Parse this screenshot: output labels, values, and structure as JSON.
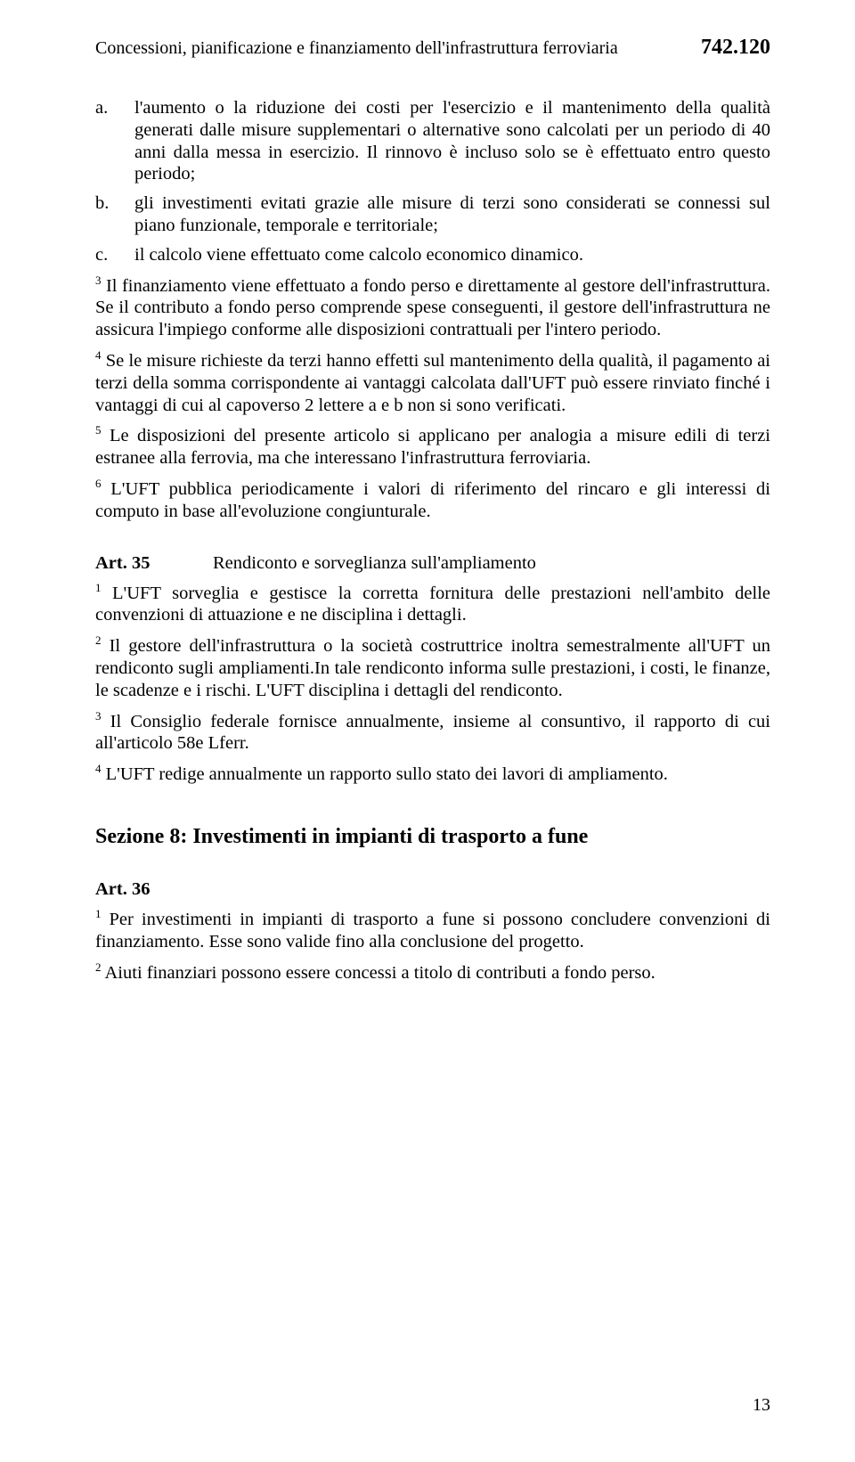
{
  "header": {
    "title": "Concessioni, pianificazione e finanziamento dell'infrastruttura ferroviaria",
    "code": "742.120"
  },
  "list": {
    "a": {
      "marker": "a.",
      "text": "l'aumento o la riduzione dei costi per l'esercizio e il mantenimento della qualità generati dalle misure supplementari o alternative sono calcolati per un periodo di 40 anni dalla messa in esercizio. Il rinnovo è incluso solo se è effettuato entro questo periodo;"
    },
    "b": {
      "marker": "b.",
      "text": "gli investimenti evitati grazie alle misure di terzi sono considerati se connessi sul piano funzionale, temporale e territoriale;"
    },
    "c": {
      "marker": "c.",
      "text": "il calcolo viene effettuato come calcolo economico dinamico."
    }
  },
  "paras": {
    "p3": {
      "sup": "3",
      "text": " Il finanziamento viene effettuato a fondo perso e direttamente al gestore dell'infrastruttura. Se il contributo a fondo perso comprende spese conseguenti, il gestore dell'infrastruttura ne assicura l'impiego conforme alle disposizioni contrattuali per l'intero periodo."
    },
    "p4": {
      "sup": "4",
      "text": " Se le misure richieste da terzi hanno effetti sul mantenimento della qualità, il pagamento ai terzi della somma corrispondente ai vantaggi calcolata dall'UFT può essere rinviato finché i vantaggi di cui al capoverso 2 lettere a e b non si sono verificati."
    },
    "p5": {
      "sup": "5",
      "text": " Le disposizioni del presente articolo si applicano per analogia a misure edili di terzi estranee alla ferrovia, ma che interessano l'infrastruttura ferroviaria."
    },
    "p6": {
      "sup": "6",
      "text": " L'UFT pubblica periodicamente i valori di riferimento del rincaro e gli interessi di computo in base all'evoluzione congiunturale."
    }
  },
  "art35": {
    "num": "Art. 35",
    "title": "Rendiconto e sorveglianza sull'ampliamento",
    "p1": {
      "sup": "1",
      "text": " L'UFT sorveglia e gestisce la corretta fornitura delle prestazioni nell'ambito delle convenzioni di attuazione e ne disciplina i dettagli."
    },
    "p2": {
      "sup": "2",
      "text": " Il gestore dell'infrastruttura o la società costruttrice inoltra semestralmente all'UFT un rendiconto sugli ampliamenti.In tale rendiconto informa sulle prestazioni, i costi, le finanze, le scadenze e i rischi. L'UFT disciplina i dettagli del rendiconto."
    },
    "p3": {
      "sup": "3",
      "text": " Il Consiglio federale fornisce annualmente, insieme al consuntivo, il rapporto di cui all'articolo 58e Lferr."
    },
    "p4": {
      "sup": "4",
      "text": " L'UFT redige annualmente un rapporto sullo stato dei lavori di ampliamento."
    }
  },
  "section8": {
    "heading": "Sezione 8: Investimenti in impianti di trasporto a fune"
  },
  "art36": {
    "num": "Art. 36",
    "p1": {
      "sup": "1",
      "text": " Per investimenti in impianti di trasporto a fune si possono concludere convenzioni di finanziamento. Esse sono valide fino alla conclusione del progetto."
    },
    "p2": {
      "sup": "2",
      "text": " Aiuti finanziari possono essere concessi a titolo di contributi a fondo perso."
    }
  },
  "pageNumber": "13",
  "colors": {
    "background": "#ffffff",
    "text": "#000000"
  },
  "typography": {
    "body_font": "Times New Roman",
    "body_size_pt": 15,
    "header_code_bold": true,
    "section_heading_bold": true
  }
}
